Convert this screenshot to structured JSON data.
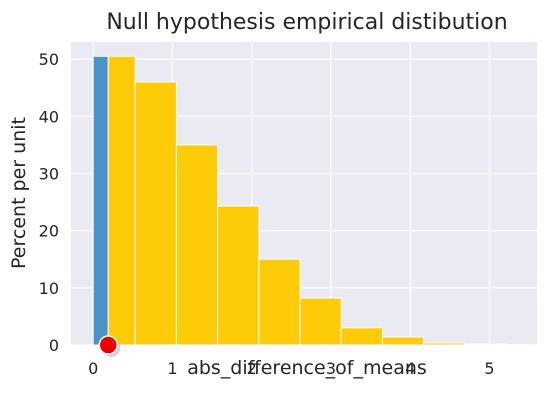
{
  "chart_data": {
    "type": "bar",
    "title": "Null hypothesis empirical distibution",
    "xlabel": "abs_difference_of_means",
    "ylabel": "Percent per unit",
    "xlim": [
      -0.28,
      5.6
    ],
    "ylim": [
      0,
      53
    ],
    "x_ticks": [
      0,
      1,
      2,
      3,
      4,
      5
    ],
    "y_ticks": [
      0,
      10,
      20,
      30,
      40,
      50
    ],
    "grid": true,
    "series": [
      {
        "color": "#4a92c8",
        "bins": [
          {
            "x0": 0.0,
            "x1": 0.19,
            "value": 50.5
          }
        ]
      },
      {
        "color": "#fdcb07",
        "bins": [
          {
            "x0": 0.19,
            "x1": 0.53,
            "value": 50.5
          },
          {
            "x0": 0.53,
            "x1": 1.05,
            "value": 46.0
          },
          {
            "x0": 1.05,
            "x1": 1.57,
            "value": 35.0
          },
          {
            "x0": 1.57,
            "x1": 2.09,
            "value": 24.3
          },
          {
            "x0": 2.09,
            "x1": 2.61,
            "value": 15.0
          },
          {
            "x0": 2.61,
            "x1": 3.13,
            "value": 8.2
          },
          {
            "x0": 3.13,
            "x1": 3.65,
            "value": 3.0
          },
          {
            "x0": 3.65,
            "x1": 4.17,
            "value": 1.4
          },
          {
            "x0": 4.17,
            "x1": 4.69,
            "value": 0.35
          },
          {
            "x0": 4.69,
            "x1": 5.21,
            "value": 0.15
          },
          {
            "x0": 5.21,
            "x1": 5.5,
            "value": 0.06
          }
        ]
      }
    ],
    "observed_marker": {
      "x": 0.19,
      "y": 0,
      "color": "#ee0000"
    },
    "colors": {
      "background": "#eaeaf2",
      "grid": "#ffffff",
      "text": "#262626"
    }
  }
}
